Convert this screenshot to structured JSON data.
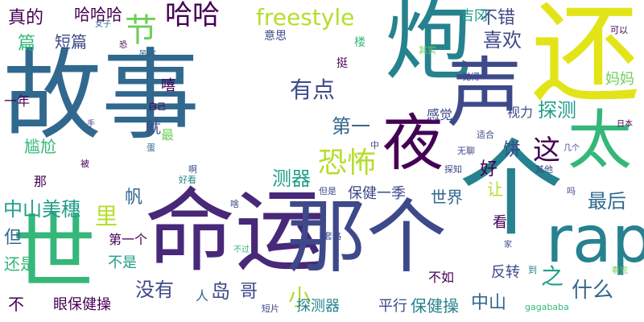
{
  "palette": {
    "deep_purple": "#440154",
    "purple": "#482878",
    "indigo": "#3e4989",
    "blue": "#31688e",
    "teal_blue": "#26828e",
    "teal": "#1f9e89",
    "green": "#35b779",
    "light_green": "#6ece58",
    "lime": "#b5de2b",
    "yellow": "#e2e418"
  },
  "words": {
    "gushi": "故事",
    "mingyun": "命运",
    "nage": "那个",
    "huan": "还",
    "pao": "炮",
    "sheng": "声",
    "ge": "个",
    "shi_world": "世",
    "ye": "夜",
    "tai": "太",
    "rap": "rap",
    "hahaha": "哈哈哈",
    "haha": "哈哈",
    "zhende": "真的",
    "tingding": "节",
    "freestyle": "freestyle",
    "bucuo": "不错",
    "jifeng": "吉冈",
    "xihuan": "喜欢",
    "youdian": "有点",
    "kongbu": "恐怖",
    "zhe": "这",
    "diyi": "第一",
    "tance": "探测",
    "ganjue": "感觉",
    "shili": "视力",
    "bing": "饼",
    "hao": "好",
    "jiu": "就",
    "zui": "最",
    "ganga": "尴尬",
    "xi": "嘻",
    "yinian": "一年",
    "pian": "篇",
    "duanpian": "短篇",
    "yisi": "意思",
    "ting": "挺",
    "nv": "女子",
    "kong": "恐",
    "suiran": "虽然",
    "ziji": "自己",
    "qishi": "其实",
    "juede": "觉得",
    "keyi": "可以",
    "mama": "妈妈",
    "riben": "日本",
    "lou": "楼",
    "shou": "手",
    "zhong": "中",
    "bei": "被",
    "dan": "蛋",
    "a": "啊",
    "haokan": "好看",
    "wuliao": "无聊",
    "shihe": "适合",
    "jige": "几个",
    "tanzhi": "探知",
    "qita": "其他",
    "ma": "吗",
    "na": "那",
    "cheqi": "测器",
    "fan": "帆",
    "baojian": "保健一季",
    "shijie": "世界",
    "rang": "让",
    "zuihou": "最后",
    "zhongshan_meisui": "中山美穗",
    "li": "里",
    "dan_but": "但",
    "diyige": "第一个",
    "bushi": "不是",
    "haishi": "还是",
    "meiyou": "没有",
    "ren": "人",
    "dao": "岛",
    "ge_bro": "哥",
    "xiao": "小",
    "zhi": "之",
    "shenme": "什么",
    "kan": "看",
    "fanzhuan": "反转",
    "buru": "不如",
    "zhongshan": "中山",
    "yanbaojiancao": "眼保健操",
    "tanceqi": "探测器",
    "pingxing": "平行",
    "baojiancao": "保健操",
    "bu": "不",
    "duanpian2": "短片",
    "buguo": "不过",
    "taolu": "套路",
    "danshi": "但是",
    "sha": "啥",
    "gagababa": "gagababa",
    "jia": "家",
    "dao_to": "到",
    "kanwan": "看完",
    "bubu": "么"
  }
}
